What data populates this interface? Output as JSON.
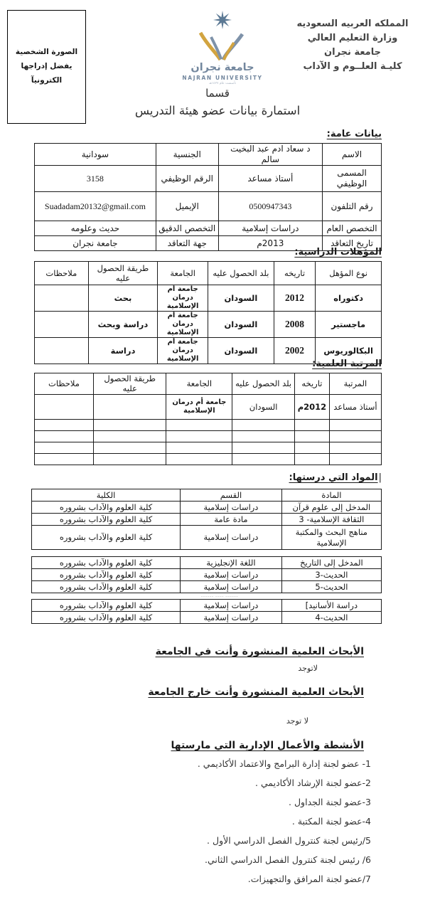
{
  "page": {
    "photo_box": {
      "line1": "الصورة الشخصية",
      "line2": "يفضل إدراجها الكترونيآ"
    },
    "letterhead_lines": [
      "المملكه العربيه السعوديه",
      "وزارة التعليم العالي",
      "جامعة  نجران",
      "كليـة العلــوم و الآداب"
    ],
    "logo": {
      "arabic_name": "جامعة نجران",
      "english_name": "NAJRAN UNIVERSITY",
      "founded_line": "تأسست عام ١٤٢٧هـ",
      "slate_color": "#7e92a9",
      "gold_color": "#d2a440"
    },
    "title_line1": "قسما",
    "title_line2": "استمارة بيانات عضو هيئة التدريس",
    "faint_mark": "______ ____ ______"
  },
  "sections": {
    "general_heading": "بيانات عامة:",
    "qualifications_heading": "المؤهلات الدراسية:",
    "rank_heading": "المرتبة العلمية:",
    "courses_cursor": "|",
    "courses_heading": "المواد التي درستها:",
    "research_inside_heading": "الأبحاث العلمية المنشورة وأنت في الجامعة",
    "research_inside_value": "لاتوجد",
    "research_outside_heading": "الأبحاث العلمية المنشورة وأنت خارج الجامعة",
    "research_outside_value": "لا توجد",
    "activities_heading": "الأنشطة والأعمال الإدارية التي مارستها",
    "activities_items": [
      "1- عضو لجنة إدارة البرامج والاعتماد الأكاديمي .",
      "2-عضو لجنة الإرشاد الأكاديمي .",
      "3-عضو لجنة الجداول .",
      "4-عضو لجنة المكتبة .",
      "5/رئيس  لجنة كنترول الفصل الدراسي الأول .",
      "6/ رئيس  لجنة كنترول الفصل الدراسي الثاني.",
      "7/عضو لجنة المرافق والتجهيزات."
    ]
  },
  "tables": {
    "general": {
      "rows": [
        [
          "الاسم",
          "د سعاد ادم عبد البخيت سالم",
          "الجنسية",
          "سودانية"
        ],
        [
          "المسمى الوظيفي",
          "أستاذ مساعد",
          "الرقم الوظيفي",
          {
            "t": "3158",
            "cls": "serif lg"
          }
        ],
        [
          "رقم التلفون",
          {
            "t": "0500947343",
            "cls": "serif"
          },
          "الإيميل",
          {
            "t": "Suadadam20132@gmail.com",
            "cls": "serif lg"
          }
        ],
        [
          "التخصص العام",
          "دراسات إسلامية",
          "التخصص الدقيق",
          "حديث وعلومه"
        ],
        [
          "تاريخ التعاقد",
          "2013م",
          "جهة التعاقد",
          "جامعة نجران"
        ]
      ]
    },
    "qualifications": {
      "rows": [
        [
          "نوع المؤهل",
          "تاريخه",
          "بلد الحصول عليه",
          "الجامعة",
          "طريقة الحصول عليه",
          "ملاحظات"
        ],
        [
          {
            "t": "دكتوراه",
            "cls": "b"
          },
          {
            "t": "2012",
            "cls": "b serif"
          },
          {
            "t": "السودان",
            "cls": "b"
          },
          {
            "t": "جامعة أم درمان الإسلامية",
            "cls": "b sm"
          },
          {
            "t": "بحث",
            "cls": "b"
          },
          ""
        ],
        [
          {
            "t": "ماجستير",
            "cls": "b"
          },
          {
            "t": "2008",
            "cls": "b serif"
          },
          {
            "t": "السودان",
            "cls": "b"
          },
          {
            "t": "جامعة أم درمان الإسلامية",
            "cls": "b sm"
          },
          {
            "t": "دراسة وبحث",
            "cls": "b"
          },
          ""
        ],
        [
          {
            "t": "البكالوريوس",
            "cls": "b"
          },
          {
            "t": "2002",
            "cls": "b serif"
          },
          {
            "t": "السودان",
            "cls": "b"
          },
          {
            "t": "جامعة أم درمان الإسلامية",
            "cls": "b sm"
          },
          {
            "t": "دراسة",
            "cls": "b"
          },
          ""
        ]
      ]
    },
    "rank": {
      "rows": [
        [
          "المرتبة",
          "تاريخه",
          "بلد الحصول عليه",
          "الجامعة",
          "طريقة الحصول عليه",
          "ملاحظات"
        ],
        [
          "أستاذ مساعد",
          {
            "t": "2012م",
            "cls": "b"
          },
          "السودان",
          {
            "t": "جامعة أم درمان الإسلامية",
            "cls": "b sm"
          },
          "",
          ""
        ],
        [
          "",
          "",
          "",
          "",
          "",
          ""
        ],
        [
          "",
          "",
          "",
          "",
          "",
          ""
        ],
        [
          "",
          "",
          "",
          "",
          "",
          ""
        ],
        [
          "",
          "",
          "",
          "",
          "",
          ""
        ]
      ]
    },
    "courses_a": {
      "rows": [
        [
          "المادة",
          "القسم",
          "الكلية"
        ],
        [
          "المدخل إلى علوم قرآن",
          "دراسات إسلامية",
          "كلية العلوم والآداب بشروره"
        ],
        [
          "الثقافة الإسلامية- 3",
          "مادة عامة",
          "كلية العلوم والآداب بشروره"
        ],
        [
          "مناهج البحث والمكتبة الإسلامية",
          "دراسات إسلامية",
          "كلية العلوم والآداب بشروره"
        ]
      ]
    },
    "courses_b": {
      "rows": [
        [
          "المدخل إلى التاريخ",
          "اللغة الإنجليزية",
          "كلية العلوم والآداب بشروره"
        ],
        [
          "الحديث-3",
          "دراسات إسلامية",
          "كلية العلوم والآداب بشروره"
        ],
        [
          "الحديث-5",
          "دراسات  إسلامية",
          "كلية العلوم والآداب بشروره"
        ]
      ]
    },
    "courses_c": {
      "rows": [
        [
          "دراسة الأسانيد⁦[⁩",
          "دراسات إسلامية",
          "كلية العلوم والآداب بشروره"
        ],
        [
          "الحديث-4",
          "دراسات إسلامية",
          "كلية العلوم والآداب بشروره"
        ]
      ]
    }
  }
}
